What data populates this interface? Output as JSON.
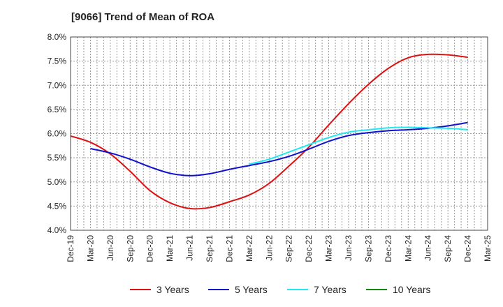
{
  "chart_data": {
    "type": "line",
    "title": "[9066]  Trend of Mean of ROA",
    "xlabel": "",
    "ylabel": "",
    "ylim": [
      4.0,
      8.0
    ],
    "y_ticks": [
      "4.0%",
      "4.5%",
      "5.0%",
      "5.5%",
      "6.0%",
      "6.5%",
      "7.0%",
      "7.5%",
      "8.0%"
    ],
    "x_ticks": [
      "Dec-19",
      "Mar-20",
      "Jun-20",
      "Sep-20",
      "Dec-20",
      "Mar-21",
      "Jun-21",
      "Sep-21",
      "Dec-21",
      "Mar-22",
      "Jun-22",
      "Sep-22",
      "Dec-22",
      "Mar-23",
      "Jun-23",
      "Sep-23",
      "Dec-23",
      "Mar-24",
      "Jun-24",
      "Sep-24",
      "Dec-24",
      "Mar-25"
    ],
    "grid": true,
    "legend_position": "bottom",
    "series": [
      {
        "name": "3 Years",
        "color": "#dd1111",
        "values": [
          5.95,
          5.82,
          5.58,
          5.22,
          4.82,
          4.57,
          4.45,
          4.47,
          4.59,
          4.73,
          4.97,
          5.33,
          5.72,
          6.18,
          6.62,
          7.02,
          7.35,
          7.57,
          7.64,
          7.63,
          7.58,
          null
        ]
      },
      {
        "name": "5 Years",
        "color": "#1111cc",
        "values": [
          null,
          5.69,
          5.6,
          5.47,
          5.31,
          5.18,
          5.13,
          5.17,
          5.26,
          5.34,
          5.42,
          5.53,
          5.68,
          5.84,
          5.96,
          6.02,
          6.06,
          6.08,
          6.11,
          6.16,
          6.23,
          null
        ]
      },
      {
        "name": "7 Years",
        "color": "#22e8f0",
        "values": [
          null,
          null,
          null,
          null,
          null,
          null,
          null,
          null,
          null,
          5.37,
          5.47,
          5.62,
          5.77,
          5.92,
          6.03,
          6.08,
          6.12,
          6.13,
          6.12,
          6.11,
          6.08,
          null
        ]
      },
      {
        "name": "10 Years",
        "color": "#118811",
        "values": [
          null,
          null,
          null,
          null,
          null,
          null,
          null,
          null,
          null,
          null,
          null,
          null,
          null,
          null,
          null,
          null,
          null,
          null,
          null,
          null,
          null,
          null
        ]
      }
    ]
  }
}
